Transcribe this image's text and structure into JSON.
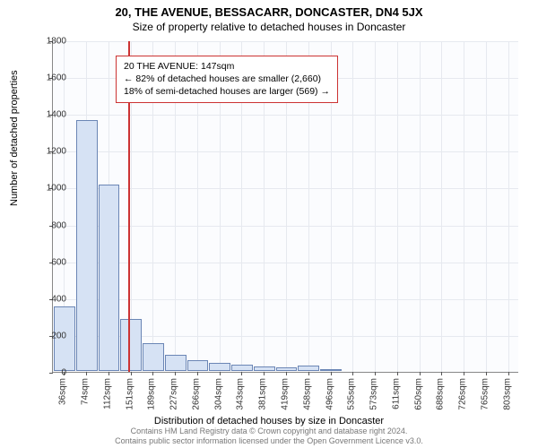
{
  "titles": {
    "line1": "20, THE AVENUE, BESSACARR, DONCASTER, DN4 5JX",
    "line2": "Size of property relative to detached houses in Doncaster"
  },
  "axes": {
    "ylabel": "Number of detached properties",
    "xlabel": "Distribution of detached houses by size in Doncaster",
    "ylim": [
      0,
      1800
    ],
    "ytick_step": 200,
    "yticks": [
      0,
      200,
      400,
      600,
      800,
      1000,
      1200,
      1400,
      1600,
      1800
    ],
    "xticks": [
      "36sqm",
      "74sqm",
      "112sqm",
      "151sqm",
      "189sqm",
      "227sqm",
      "266sqm",
      "304sqm",
      "343sqm",
      "381sqm",
      "419sqm",
      "458sqm",
      "496sqm",
      "535sqm",
      "573sqm",
      "611sqm",
      "650sqm",
      "688sqm",
      "726sqm",
      "765sqm",
      "803sqm"
    ]
  },
  "chart": {
    "type": "histogram",
    "bar_fill": "#d6e2f4",
    "bar_stroke": "#6b86b5",
    "background": "#fbfcfe",
    "grid_color": "#e6e9ef",
    "values": [
      350,
      1360,
      1010,
      280,
      150,
      90,
      60,
      45,
      35,
      22,
      20,
      28,
      10,
      0,
      0,
      0,
      0,
      0,
      0,
      0,
      0
    ],
    "ref_line": {
      "value_sqm": 147,
      "color": "#cc3333"
    }
  },
  "annotation": {
    "line1": "20 THE AVENUE: 147sqm",
    "line2": "← 82% of detached houses are smaller (2,660)",
    "line3": "18% of semi-detached houses are larger (569) →",
    "border_color": "#cc3333",
    "bg": "#ffffff"
  },
  "footer": {
    "line1": "Contains HM Land Registry data © Crown copyright and database right 2024.",
    "line2": "Contains public sector information licensed under the Open Government Licence v3.0."
  }
}
